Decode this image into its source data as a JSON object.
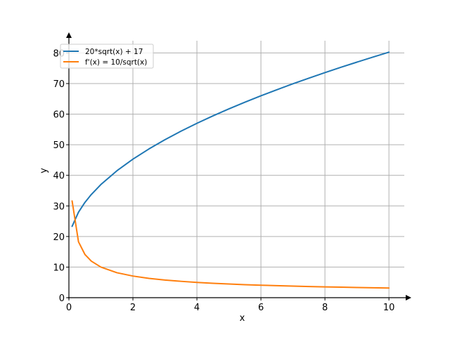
{
  "chart_data": {
    "type": "line",
    "xlabel": "x",
    "ylabel": "y",
    "xlim": [
      0,
      10
    ],
    "ylim": [
      0,
      84
    ],
    "xticks": [
      0,
      2,
      4,
      6,
      8,
      10
    ],
    "yticks": [
      0,
      10,
      20,
      30,
      40,
      50,
      60,
      70,
      80
    ],
    "grid": true,
    "legend_position": "top-left",
    "series": [
      {
        "name": "20*sqrt(x) + 17",
        "color": "#1f77b4",
        "x": [
          0.1,
          0.3,
          0.5,
          0.7,
          1,
          1.5,
          2,
          2.5,
          3,
          3.5,
          4,
          4.5,
          5,
          5.5,
          6,
          6.5,
          7,
          7.5,
          8,
          8.5,
          9,
          9.5,
          10
        ],
        "y": [
          23.32,
          27.95,
          31.14,
          33.73,
          37.0,
          41.49,
          45.28,
          48.62,
          51.64,
          54.42,
          57.0,
          59.43,
          61.72,
          63.9,
          65.99,
          67.99,
          69.92,
          71.77,
          73.57,
          75.31,
          77.0,
          78.64,
          80.25
        ]
      },
      {
        "name": "f'(x) = 10/sqrt(x)",
        "color": "#ff7f0e",
        "x": [
          0.1,
          0.3,
          0.5,
          0.7,
          1,
          1.5,
          2,
          2.5,
          3,
          3.5,
          4,
          4.5,
          5,
          5.5,
          6,
          6.5,
          7,
          7.5,
          8,
          8.5,
          9,
          9.5,
          10
        ],
        "y": [
          31.62,
          18.26,
          14.14,
          11.95,
          10.0,
          8.16,
          7.07,
          6.32,
          5.77,
          5.35,
          5.0,
          4.71,
          4.47,
          4.26,
          4.08,
          3.92,
          3.78,
          3.65,
          3.54,
          3.43,
          3.33,
          3.24,
          3.16
        ]
      }
    ]
  }
}
